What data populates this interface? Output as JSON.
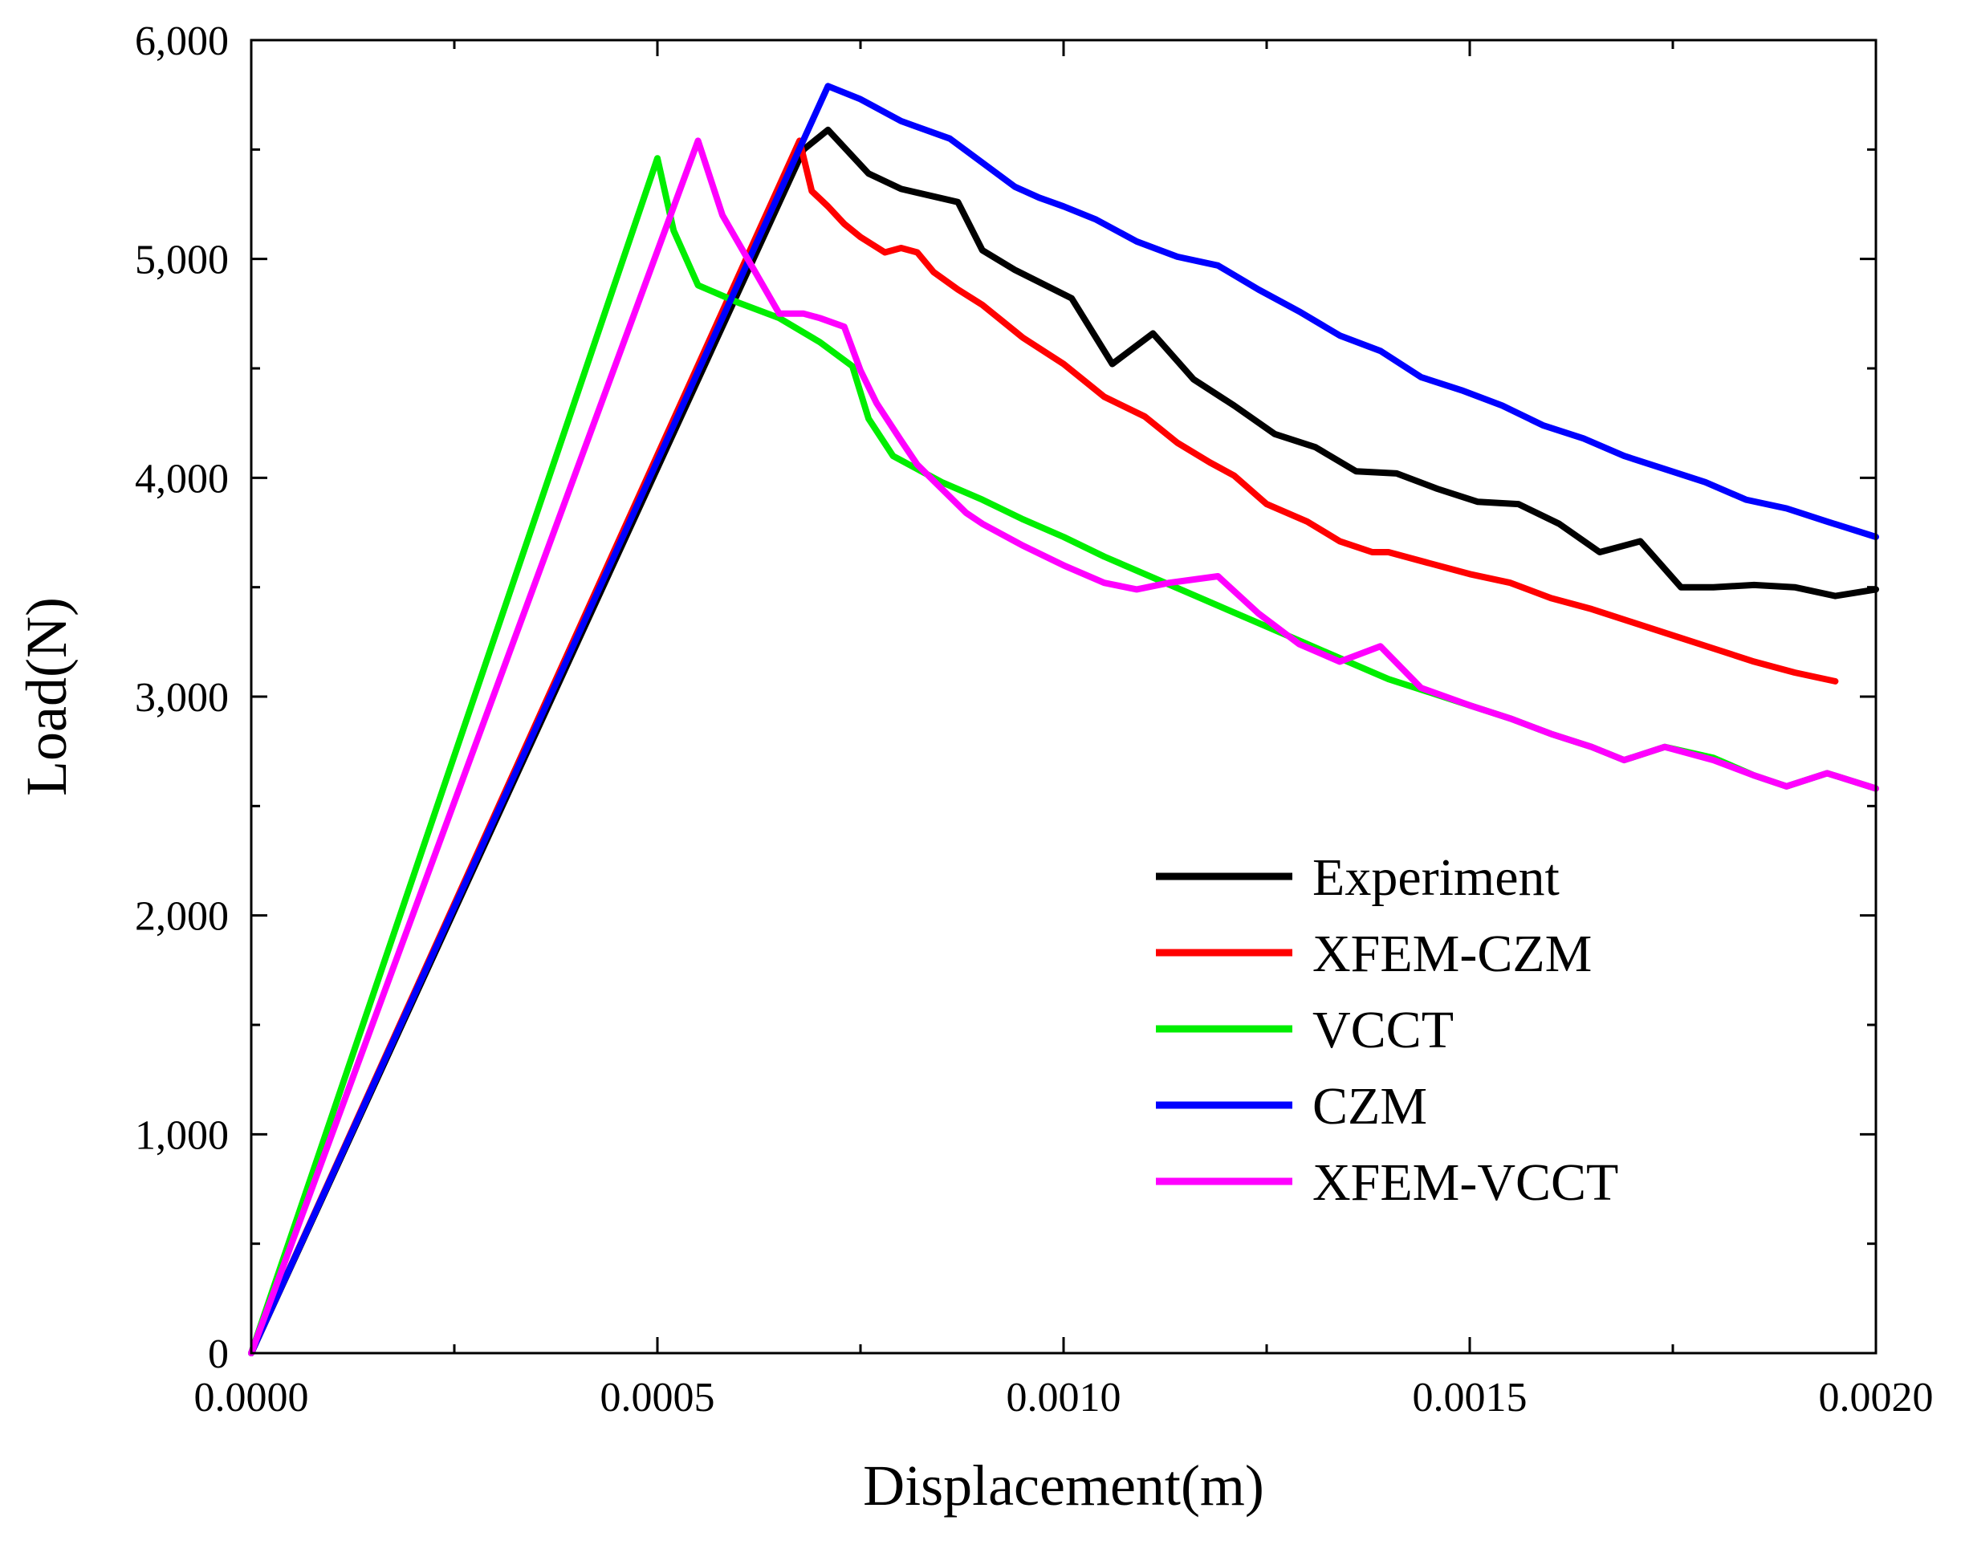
{
  "chart_data": {
    "type": "line",
    "title": "",
    "xlabel": "Displacement(m)",
    "ylabel": "Load(N)",
    "xlim": [
      0,
      0.002
    ],
    "ylim": [
      0,
      6000
    ],
    "x_ticks": [
      0,
      0.0005,
      0.001,
      0.0015,
      0.002
    ],
    "x_tick_labels": [
      "0.0000",
      "0.0005",
      "0.0010",
      "0.0015",
      "0.0020"
    ],
    "x_minor_ticks": [
      0.00025,
      0.00075,
      0.00125,
      0.00175
    ],
    "y_ticks": [
      0,
      1000,
      2000,
      3000,
      4000,
      5000,
      6000
    ],
    "y_tick_labels": [
      "0",
      "1,000",
      "2,000",
      "3,000",
      "4,000",
      "5,000",
      "6,000"
    ],
    "y_minor_ticks": [
      500,
      1500,
      2500,
      3500,
      4500,
      5500
    ],
    "grid": false,
    "legend_position": "right-middle",
    "series": [
      {
        "name": "Experiment",
        "color": "#000000",
        "points": [
          [
            0,
            0
          ],
          [
            0.00068,
            5500
          ],
          [
            0.00071,
            5590
          ],
          [
            0.00076,
            5390
          ],
          [
            0.0008,
            5320
          ],
          [
            0.00087,
            5260
          ],
          [
            0.0009,
            5040
          ],
          [
            0.00094,
            4950
          ],
          [
            0.00101,
            4820
          ],
          [
            0.00106,
            4520
          ],
          [
            0.00111,
            4660
          ],
          [
            0.00116,
            4450
          ],
          [
            0.00121,
            4330
          ],
          [
            0.00126,
            4200
          ],
          [
            0.00131,
            4140
          ],
          [
            0.00136,
            4030
          ],
          [
            0.00141,
            4020
          ],
          [
            0.00146,
            3950
          ],
          [
            0.00151,
            3890
          ],
          [
            0.00156,
            3880
          ],
          [
            0.00161,
            3790
          ],
          [
            0.00166,
            3660
          ],
          [
            0.00171,
            3710
          ],
          [
            0.00176,
            3500
          ],
          [
            0.0018,
            3500
          ],
          [
            0.00185,
            3510
          ],
          [
            0.0019,
            3500
          ],
          [
            0.00195,
            3460
          ],
          [
            0.002,
            3490
          ]
        ]
      },
      {
        "name": "XFEM-CZM",
        "color": "#ff0000",
        "points": [
          [
            0,
            0
          ],
          [
            0.000675,
            5540
          ],
          [
            0.00069,
            5310
          ],
          [
            0.00071,
            5240
          ],
          [
            0.00073,
            5160
          ],
          [
            0.00075,
            5100
          ],
          [
            0.00078,
            5030
          ],
          [
            0.0008,
            5050
          ],
          [
            0.00082,
            5030
          ],
          [
            0.00084,
            4940
          ],
          [
            0.00087,
            4860
          ],
          [
            0.0009,
            4790
          ],
          [
            0.00095,
            4640
          ],
          [
            0.001,
            4520
          ],
          [
            0.00105,
            4370
          ],
          [
            0.0011,
            4280
          ],
          [
            0.00114,
            4160
          ],
          [
            0.00118,
            4070
          ],
          [
            0.00121,
            4010
          ],
          [
            0.00125,
            3880
          ],
          [
            0.0013,
            3800
          ],
          [
            0.00134,
            3710
          ],
          [
            0.00138,
            3660
          ],
          [
            0.0014,
            3660
          ],
          [
            0.00145,
            3610
          ],
          [
            0.0015,
            3560
          ],
          [
            0.00155,
            3520
          ],
          [
            0.0016,
            3450
          ],
          [
            0.00165,
            3400
          ],
          [
            0.0017,
            3340
          ],
          [
            0.00175,
            3280
          ],
          [
            0.0018,
            3220
          ],
          [
            0.00185,
            3160
          ],
          [
            0.0019,
            3110
          ],
          [
            0.00195,
            3070
          ]
        ]
      },
      {
        "name": "VCCT",
        "color": "#00ee00",
        "points": [
          [
            0,
            0
          ],
          [
            0.0005,
            5460
          ],
          [
            0.00052,
            5130
          ],
          [
            0.00055,
            4880
          ],
          [
            0.0006,
            4800
          ],
          [
            0.00065,
            4730
          ],
          [
            0.0007,
            4620
          ],
          [
            0.00074,
            4510
          ],
          [
            0.00076,
            4270
          ],
          [
            0.00079,
            4100
          ],
          [
            0.00085,
            3980
          ],
          [
            0.0009,
            3900
          ],
          [
            0.00095,
            3810
          ],
          [
            0.001,
            3730
          ],
          [
            0.00105,
            3640
          ],
          [
            0.0011,
            3560
          ],
          [
            0.00115,
            3480
          ],
          [
            0.0012,
            3400
          ],
          [
            0.00125,
            3320
          ],
          [
            0.0013,
            3240
          ],
          [
            0.00135,
            3160
          ],
          [
            0.0014,
            3080
          ],
          [
            0.00145,
            3020
          ],
          [
            0.0015,
            2960
          ],
          [
            0.00155,
            2900
          ],
          [
            0.0016,
            2830
          ],
          [
            0.00165,
            2770
          ],
          [
            0.00169,
            2710
          ],
          [
            0.00174,
            2770
          ],
          [
            0.0018,
            2720
          ],
          [
            0.00185,
            2640
          ],
          [
            0.00189,
            2590
          ],
          [
            0.00194,
            2650
          ],
          [
            0.002,
            2580
          ]
        ]
      },
      {
        "name": "CZM",
        "color": "#0000ff",
        "points": [
          [
            0,
            0
          ],
          [
            0.00071,
            5790
          ],
          [
            0.00075,
            5730
          ],
          [
            0.0008,
            5630
          ],
          [
            0.00086,
            5550
          ],
          [
            0.0009,
            5440
          ],
          [
            0.00094,
            5330
          ],
          [
            0.00097,
            5280
          ],
          [
            0.001,
            5240
          ],
          [
            0.00104,
            5180
          ],
          [
            0.00109,
            5080
          ],
          [
            0.00114,
            5010
          ],
          [
            0.00119,
            4970
          ],
          [
            0.00124,
            4860
          ],
          [
            0.00129,
            4760
          ],
          [
            0.00134,
            4650
          ],
          [
            0.00139,
            4580
          ],
          [
            0.00144,
            4460
          ],
          [
            0.00149,
            4400
          ],
          [
            0.00154,
            4330
          ],
          [
            0.00159,
            4240
          ],
          [
            0.00164,
            4180
          ],
          [
            0.00169,
            4100
          ],
          [
            0.00174,
            4040
          ],
          [
            0.00179,
            3980
          ],
          [
            0.00184,
            3900
          ],
          [
            0.00189,
            3860
          ],
          [
            0.00194,
            3800
          ],
          [
            0.002,
            3730
          ]
        ]
      },
      {
        "name": "XFEM-VCCT",
        "color": "#ff00ff",
        "points": [
          [
            0,
            0
          ],
          [
            0.00055,
            5540
          ],
          [
            0.00058,
            5200
          ],
          [
            0.00065,
            4750
          ],
          [
            0.00068,
            4750
          ],
          [
            0.0007,
            4730
          ],
          [
            0.00073,
            4690
          ],
          [
            0.00075,
            4490
          ],
          [
            0.00077,
            4340
          ],
          [
            0.0008,
            4170
          ],
          [
            0.00082,
            4060
          ],
          [
            0.00085,
            3950
          ],
          [
            0.00088,
            3840
          ],
          [
            0.0009,
            3790
          ],
          [
            0.00095,
            3690
          ],
          [
            0.001,
            3600
          ],
          [
            0.00105,
            3520
          ],
          [
            0.00109,
            3490
          ],
          [
            0.00113,
            3520
          ],
          [
            0.00119,
            3550
          ],
          [
            0.00124,
            3380
          ],
          [
            0.00129,
            3240
          ],
          [
            0.00134,
            3160
          ],
          [
            0.00139,
            3230
          ],
          [
            0.00144,
            3040
          ],
          [
            0.0015,
            2960
          ],
          [
            0.00155,
            2900
          ],
          [
            0.0016,
            2830
          ],
          [
            0.00165,
            2770
          ],
          [
            0.00169,
            2710
          ],
          [
            0.00174,
            2770
          ],
          [
            0.0018,
            2710
          ],
          [
            0.00185,
            2640
          ],
          [
            0.00189,
            2590
          ],
          [
            0.00194,
            2650
          ],
          [
            0.002,
            2580
          ]
        ]
      }
    ]
  }
}
